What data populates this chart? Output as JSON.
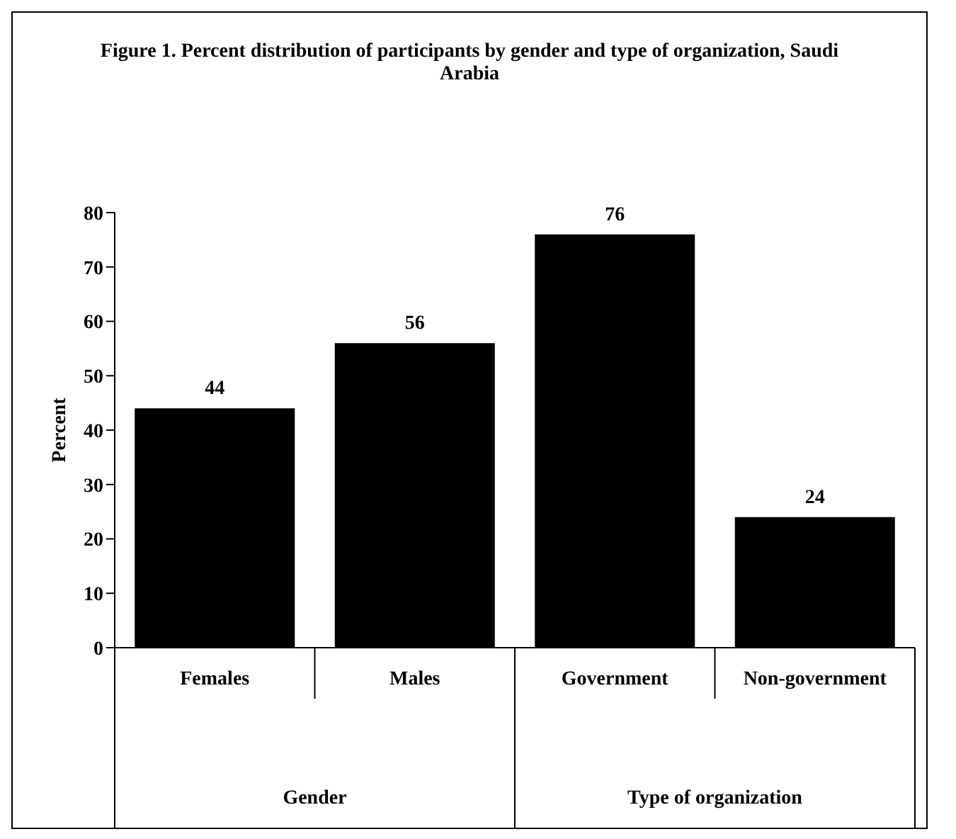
{
  "chart_data": {
    "type": "bar",
    "title": "Figure 1. Percent distribution of participants by gender and type of organization, Saudi Arabia",
    "categories": [
      "Females",
      "Males",
      "Government",
      "Non-government"
    ],
    "values": [
      44,
      56,
      76,
      24
    ],
    "color": "#000000",
    "ylabel": "Percent",
    "ylim": [
      0,
      80
    ],
    "yticks": [
      0,
      10,
      20,
      30,
      40,
      50,
      60,
      70,
      80
    ],
    "annotations": [
      "Gender",
      "Type of organization"
    ],
    "data_labels": true,
    "grid": false,
    "legend": false
  }
}
